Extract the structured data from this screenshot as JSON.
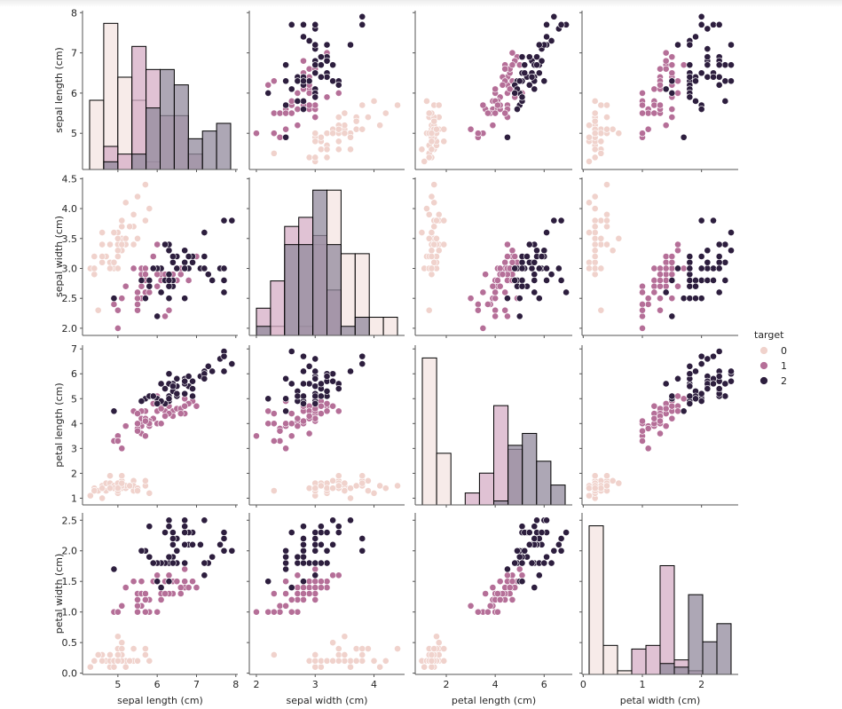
{
  "chart_data": {
    "type": "scatter",
    "kind": "pairplot",
    "diag_kind": "hist",
    "variables": [
      "sepal length (cm)",
      "sepal width (cm)",
      "petal length (cm)",
      "petal width (cm)"
    ],
    "axes": [
      {
        "label": "sepal length (cm)",
        "range": [
          4.1,
          8.05
        ],
        "x_ticks": [
          5,
          6,
          7,
          8
        ],
        "y_ticks": [
          5,
          6,
          7,
          8
        ]
      },
      {
        "label": "sepal width (cm)",
        "range": [
          1.88,
          4.52
        ],
        "x_ticks": [
          2,
          3,
          4
        ],
        "y_ticks": [
          2.0,
          2.5,
          3.0,
          3.5,
          4.0,
          4.5
        ]
      },
      {
        "label": "petal length (cm)",
        "range": [
          0.73,
          7.15
        ],
        "x_ticks": [
          2,
          4,
          6
        ],
        "y_ticks": [
          1,
          2,
          3,
          4,
          5,
          6,
          7
        ]
      },
      {
        "label": "petal width (cm)",
        "range": [
          -0.02,
          2.62
        ],
        "x_ticks": [
          0,
          1,
          2
        ],
        "y_ticks": [
          0.0,
          0.5,
          1.0,
          1.5,
          2.0,
          2.5
        ]
      }
    ],
    "y_tick_labels": [
      [
        "5",
        "6",
        "7",
        "8"
      ],
      [
        "2.0",
        "2.5",
        "3.0",
        "3.5",
        "4.0",
        "4.5"
      ],
      [
        "1",
        "2",
        "3",
        "4",
        "5",
        "6",
        "7"
      ],
      [
        "0.0",
        "0.5",
        "1.0",
        "1.5",
        "2.0",
        "2.5"
      ]
    ],
    "x_tick_labels": [
      [
        "5",
        "6",
        "7",
        "8"
      ],
      [
        "2",
        "3",
        "4"
      ],
      [
        "2",
        "4",
        "6"
      ],
      [
        "0",
        "1",
        "2"
      ]
    ],
    "hue": "target",
    "legend": {
      "title": "target",
      "position": "right",
      "entries": [
        {
          "label": "0",
          "color": "#f0d2cc"
        },
        {
          "label": "1",
          "color": "#b56f98"
        },
        {
          "label": "2",
          "color": "#2d1e3e"
        }
      ]
    },
    "hist_fill_colors": [
      "#f4e4e2",
      "#d5aec6",
      "#918a9c"
    ],
    "hist_overlap_colors": {
      "01": "#e3c4cc",
      "12": "#a4778f",
      "012": "#c4a7b3",
      "02": "#c0b3b8"
    },
    "bins": 10,
    "samples": [
      [
        5.1,
        3.5,
        1.4,
        0.2,
        0
      ],
      [
        4.9,
        3.0,
        1.4,
        0.2,
        0
      ],
      [
        4.7,
        3.2,
        1.3,
        0.2,
        0
      ],
      [
        4.6,
        3.1,
        1.5,
        0.2,
        0
      ],
      [
        5.0,
        3.6,
        1.4,
        0.2,
        0
      ],
      [
        5.4,
        3.9,
        1.7,
        0.4,
        0
      ],
      [
        4.6,
        3.4,
        1.4,
        0.3,
        0
      ],
      [
        5.0,
        3.4,
        1.5,
        0.2,
        0
      ],
      [
        4.4,
        2.9,
        1.4,
        0.2,
        0
      ],
      [
        4.9,
        3.1,
        1.5,
        0.1,
        0
      ],
      [
        5.4,
        3.7,
        1.5,
        0.2,
        0
      ],
      [
        4.8,
        3.4,
        1.6,
        0.2,
        0
      ],
      [
        4.8,
        3.0,
        1.4,
        0.1,
        0
      ],
      [
        4.3,
        3.0,
        1.1,
        0.1,
        0
      ],
      [
        5.8,
        4.0,
        1.2,
        0.2,
        0
      ],
      [
        5.7,
        4.4,
        1.5,
        0.4,
        0
      ],
      [
        5.4,
        3.9,
        1.3,
        0.4,
        0
      ],
      [
        5.1,
        3.5,
        1.4,
        0.3,
        0
      ],
      [
        5.7,
        3.8,
        1.7,
        0.3,
        0
      ],
      [
        5.1,
        3.8,
        1.5,
        0.3,
        0
      ],
      [
        5.4,
        3.4,
        1.7,
        0.2,
        0
      ],
      [
        5.1,
        3.7,
        1.5,
        0.4,
        0
      ],
      [
        4.6,
        3.6,
        1.0,
        0.2,
        0
      ],
      [
        5.1,
        3.3,
        1.7,
        0.5,
        0
      ],
      [
        4.8,
        3.4,
        1.9,
        0.2,
        0
      ],
      [
        5.0,
        3.0,
        1.6,
        0.2,
        0
      ],
      [
        5.0,
        3.4,
        1.6,
        0.4,
        0
      ],
      [
        5.2,
        3.5,
        1.5,
        0.2,
        0
      ],
      [
        5.2,
        3.4,
        1.4,
        0.2,
        0
      ],
      [
        4.7,
        3.2,
        1.6,
        0.2,
        0
      ],
      [
        4.8,
        3.1,
        1.6,
        0.2,
        0
      ],
      [
        5.4,
        3.4,
        1.5,
        0.4,
        0
      ],
      [
        5.2,
        4.1,
        1.5,
        0.1,
        0
      ],
      [
        5.5,
        4.2,
        1.4,
        0.2,
        0
      ],
      [
        4.9,
        3.1,
        1.5,
        0.2,
        0
      ],
      [
        5.0,
        3.2,
        1.2,
        0.2,
        0
      ],
      [
        5.5,
        3.5,
        1.3,
        0.2,
        0
      ],
      [
        4.9,
        3.6,
        1.4,
        0.1,
        0
      ],
      [
        4.4,
        3.0,
        1.3,
        0.2,
        0
      ],
      [
        5.1,
        3.4,
        1.5,
        0.2,
        0
      ],
      [
        5.0,
        3.5,
        1.3,
        0.3,
        0
      ],
      [
        4.5,
        2.3,
        1.3,
        0.3,
        0
      ],
      [
        4.4,
        3.2,
        1.3,
        0.2,
        0
      ],
      [
        5.0,
        3.5,
        1.6,
        0.6,
        0
      ],
      [
        5.1,
        3.8,
        1.9,
        0.4,
        0
      ],
      [
        4.8,
        3.0,
        1.4,
        0.3,
        0
      ],
      [
        5.1,
        3.8,
        1.6,
        0.2,
        0
      ],
      [
        4.6,
        3.2,
        1.4,
        0.2,
        0
      ],
      [
        5.3,
        3.7,
        1.5,
        0.2,
        0
      ],
      [
        5.0,
        3.3,
        1.4,
        0.2,
        0
      ],
      [
        7.0,
        3.2,
        4.7,
        1.4,
        1
      ],
      [
        6.4,
        3.2,
        4.5,
        1.5,
        1
      ],
      [
        6.9,
        3.1,
        4.9,
        1.5,
        1
      ],
      [
        5.5,
        2.3,
        4.0,
        1.3,
        1
      ],
      [
        6.5,
        2.8,
        4.6,
        1.5,
        1
      ],
      [
        5.7,
        2.8,
        4.5,
        1.3,
        1
      ],
      [
        6.3,
        3.3,
        4.7,
        1.6,
        1
      ],
      [
        4.9,
        2.4,
        3.3,
        1.0,
        1
      ],
      [
        6.6,
        2.9,
        4.6,
        1.3,
        1
      ],
      [
        5.2,
        2.7,
        3.9,
        1.4,
        1
      ],
      [
        5.0,
        2.0,
        3.5,
        1.0,
        1
      ],
      [
        5.9,
        3.0,
        4.2,
        1.5,
        1
      ],
      [
        6.0,
        2.2,
        4.0,
        1.0,
        1
      ],
      [
        6.1,
        2.9,
        4.7,
        1.4,
        1
      ],
      [
        5.6,
        2.9,
        3.6,
        1.3,
        1
      ],
      [
        6.7,
        3.1,
        4.4,
        1.4,
        1
      ],
      [
        5.6,
        3.0,
        4.5,
        1.5,
        1
      ],
      [
        5.8,
        2.7,
        4.1,
        1.0,
        1
      ],
      [
        6.2,
        2.2,
        4.5,
        1.5,
        1
      ],
      [
        5.6,
        2.5,
        3.9,
        1.1,
        1
      ],
      [
        5.9,
        3.2,
        4.8,
        1.8,
        1
      ],
      [
        6.1,
        2.8,
        4.0,
        1.3,
        1
      ],
      [
        6.3,
        2.5,
        4.9,
        1.5,
        1
      ],
      [
        6.1,
        2.8,
        4.7,
        1.2,
        1
      ],
      [
        6.4,
        2.9,
        4.3,
        1.3,
        1
      ],
      [
        6.6,
        3.0,
        4.4,
        1.4,
        1
      ],
      [
        6.8,
        2.8,
        4.8,
        1.4,
        1
      ],
      [
        6.7,
        3.0,
        5.0,
        1.7,
        1
      ],
      [
        6.0,
        2.9,
        4.5,
        1.5,
        1
      ],
      [
        5.7,
        2.6,
        3.5,
        1.0,
        1
      ],
      [
        5.5,
        2.4,
        3.8,
        1.1,
        1
      ],
      [
        5.5,
        2.4,
        3.7,
        1.0,
        1
      ],
      [
        5.8,
        2.7,
        3.9,
        1.2,
        1
      ],
      [
        6.0,
        2.7,
        5.1,
        1.6,
        1
      ],
      [
        5.4,
        3.0,
        4.5,
        1.5,
        1
      ],
      [
        6.0,
        3.4,
        4.5,
        1.6,
        1
      ],
      [
        6.7,
        3.1,
        4.7,
        1.5,
        1
      ],
      [
        6.3,
        2.3,
        4.4,
        1.3,
        1
      ],
      [
        5.6,
        3.0,
        4.1,
        1.3,
        1
      ],
      [
        5.5,
        2.5,
        4.0,
        1.3,
        1
      ],
      [
        5.5,
        2.6,
        4.4,
        1.2,
        1
      ],
      [
        6.1,
        3.0,
        4.6,
        1.4,
        1
      ],
      [
        5.8,
        2.6,
        4.0,
        1.2,
        1
      ],
      [
        5.0,
        2.3,
        3.3,
        1.0,
        1
      ],
      [
        5.6,
        2.7,
        4.2,
        1.3,
        1
      ],
      [
        5.7,
        3.0,
        4.2,
        1.2,
        1
      ],
      [
        5.7,
        2.9,
        4.2,
        1.3,
        1
      ],
      [
        6.2,
        2.9,
        4.3,
        1.3,
        1
      ],
      [
        5.1,
        2.5,
        3.0,
        1.1,
        1
      ],
      [
        5.7,
        2.8,
        4.1,
        1.3,
        1
      ],
      [
        6.3,
        3.3,
        6.0,
        2.5,
        2
      ],
      [
        5.8,
        2.7,
        5.1,
        1.9,
        2
      ],
      [
        7.1,
        3.0,
        5.9,
        2.1,
        2
      ],
      [
        6.3,
        2.9,
        5.6,
        1.8,
        2
      ],
      [
        6.5,
        3.0,
        5.8,
        2.2,
        2
      ],
      [
        7.6,
        3.0,
        6.6,
        2.1,
        2
      ],
      [
        4.9,
        2.5,
        4.5,
        1.7,
        2
      ],
      [
        7.3,
        2.9,
        6.3,
        1.8,
        2
      ],
      [
        6.7,
        2.5,
        5.8,
        1.8,
        2
      ],
      [
        7.2,
        3.6,
        6.1,
        2.5,
        2
      ],
      [
        6.5,
        3.2,
        5.1,
        2.0,
        2
      ],
      [
        6.4,
        2.7,
        5.3,
        1.9,
        2
      ],
      [
        6.8,
        3.0,
        5.5,
        2.1,
        2
      ],
      [
        5.7,
        2.5,
        5.0,
        2.0,
        2
      ],
      [
        5.8,
        2.8,
        5.1,
        2.4,
        2
      ],
      [
        6.4,
        3.2,
        5.3,
        2.3,
        2
      ],
      [
        6.5,
        3.0,
        5.5,
        1.8,
        2
      ],
      [
        7.7,
        3.8,
        6.7,
        2.2,
        2
      ],
      [
        7.7,
        2.6,
        6.9,
        2.3,
        2
      ],
      [
        6.0,
        2.2,
        5.0,
        1.5,
        2
      ],
      [
        6.9,
        3.2,
        5.7,
        2.3,
        2
      ],
      [
        5.6,
        2.8,
        4.9,
        2.0,
        2
      ],
      [
        7.7,
        2.8,
        6.7,
        2.0,
        2
      ],
      [
        6.3,
        2.7,
        4.9,
        1.8,
        2
      ],
      [
        6.7,
        3.3,
        5.7,
        2.1,
        2
      ],
      [
        7.2,
        3.2,
        6.0,
        1.8,
        2
      ],
      [
        6.2,
        2.8,
        4.8,
        1.8,
        2
      ],
      [
        6.1,
        3.0,
        4.9,
        1.8,
        2
      ],
      [
        6.4,
        2.8,
        5.6,
        2.1,
        2
      ],
      [
        7.2,
        3.0,
        5.8,
        1.6,
        2
      ],
      [
        7.4,
        2.8,
        6.1,
        1.9,
        2
      ],
      [
        7.9,
        3.8,
        6.4,
        2.0,
        2
      ],
      [
        6.4,
        2.8,
        5.6,
        2.2,
        2
      ],
      [
        6.3,
        2.8,
        5.1,
        1.5,
        2
      ],
      [
        6.1,
        2.6,
        5.6,
        1.4,
        2
      ],
      [
        7.7,
        3.0,
        6.1,
        2.3,
        2
      ],
      [
        6.3,
        3.4,
        5.6,
        2.4,
        2
      ],
      [
        6.4,
        3.1,
        5.5,
        1.8,
        2
      ],
      [
        6.0,
        3.0,
        4.8,
        1.8,
        2
      ],
      [
        6.9,
        3.1,
        5.4,
        2.1,
        2
      ],
      [
        6.7,
        3.1,
        5.6,
        2.4,
        2
      ],
      [
        6.9,
        3.1,
        5.1,
        2.3,
        2
      ],
      [
        5.8,
        2.7,
        5.1,
        1.9,
        2
      ],
      [
        6.8,
        3.2,
        5.9,
        2.3,
        2
      ],
      [
        6.7,
        3.3,
        5.7,
        2.5,
        2
      ],
      [
        6.7,
        3.0,
        5.2,
        2.3,
        2
      ],
      [
        6.3,
        2.5,
        5.0,
        1.9,
        2
      ],
      [
        6.5,
        3.0,
        5.2,
        2.0,
        2
      ],
      [
        6.2,
        3.4,
        5.4,
        2.3,
        2
      ],
      [
        5.9,
        3.0,
        5.1,
        1.8,
        2
      ]
    ]
  }
}
